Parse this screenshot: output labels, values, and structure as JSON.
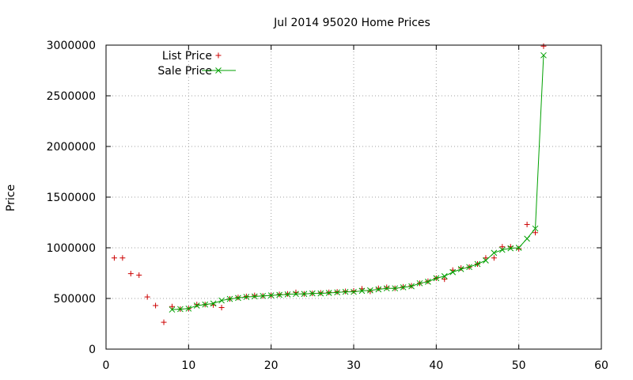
{
  "chart_data": {
    "type": "scatter",
    "title": "Jul 2014 95020 Home Prices",
    "xlabel": "",
    "ylabel": "Price",
    "xlim": [
      0,
      60
    ],
    "ylim": [
      0,
      3000000
    ],
    "xticks": [
      "0",
      "10",
      "20",
      "30",
      "40",
      "50",
      "60"
    ],
    "yticks": [
      "0",
      "500000",
      "1000000",
      "1500000",
      "2000000",
      "2500000",
      "3000000"
    ],
    "grid": true,
    "legend_position": "top-left",
    "series": [
      {
        "name": "List Price",
        "style": "points",
        "marker": "plus",
        "color": "#cc0000",
        "x": [
          1,
          2,
          3,
          4,
          5,
          6,
          7,
          8,
          9,
          10,
          11,
          12,
          13,
          14,
          15,
          16,
          17,
          18,
          19,
          20,
          21,
          22,
          23,
          24,
          25,
          26,
          27,
          28,
          29,
          30,
          31,
          32,
          33,
          34,
          35,
          36,
          37,
          38,
          39,
          40,
          41,
          42,
          43,
          44,
          45,
          46,
          47,
          48,
          49,
          50,
          51,
          52,
          53
        ],
        "y": [
          900000,
          900000,
          745000,
          730000,
          515000,
          430000,
          265000,
          420000,
          395000,
          400000,
          440000,
          440000,
          435000,
          410000,
          495000,
          510000,
          520000,
          530000,
          525000,
          530000,
          540000,
          545000,
          560000,
          545000,
          550000,
          555000,
          560000,
          565000,
          570000,
          575000,
          595000,
          570000,
          600000,
          610000,
          600000,
          615000,
          625000,
          650000,
          670000,
          700000,
          690000,
          780000,
          800000,
          810000,
          840000,
          900000,
          900000,
          1010000,
          1010000,
          990000,
          1230000,
          1150000,
          2990000
        ]
      },
      {
        "name": "Sale Price",
        "style": "linespoints",
        "marker": "x",
        "color": "#00a000",
        "x": [
          8,
          9,
          10,
          11,
          12,
          13,
          14,
          15,
          16,
          17,
          18,
          19,
          20,
          21,
          22,
          23,
          24,
          25,
          26,
          27,
          28,
          29,
          30,
          31,
          32,
          33,
          34,
          35,
          36,
          37,
          38,
          39,
          40,
          41,
          42,
          43,
          44,
          45,
          46,
          47,
          48,
          49,
          50,
          51,
          52,
          53
        ],
        "y": [
          390000,
          395000,
          400000,
          430000,
          440000,
          450000,
          480000,
          495000,
          505000,
          515000,
          520000,
          525000,
          530000,
          535000,
          540000,
          545000,
          545000,
          550000,
          550000,
          555000,
          560000,
          565000,
          565000,
          575000,
          580000,
          590000,
          600000,
          600000,
          610000,
          620000,
          650000,
          665000,
          700000,
          720000,
          760000,
          790000,
          810000,
          840000,
          875000,
          950000,
          980000,
          995000,
          1000000,
          1090000,
          1190000,
          2900000
        ]
      }
    ]
  }
}
